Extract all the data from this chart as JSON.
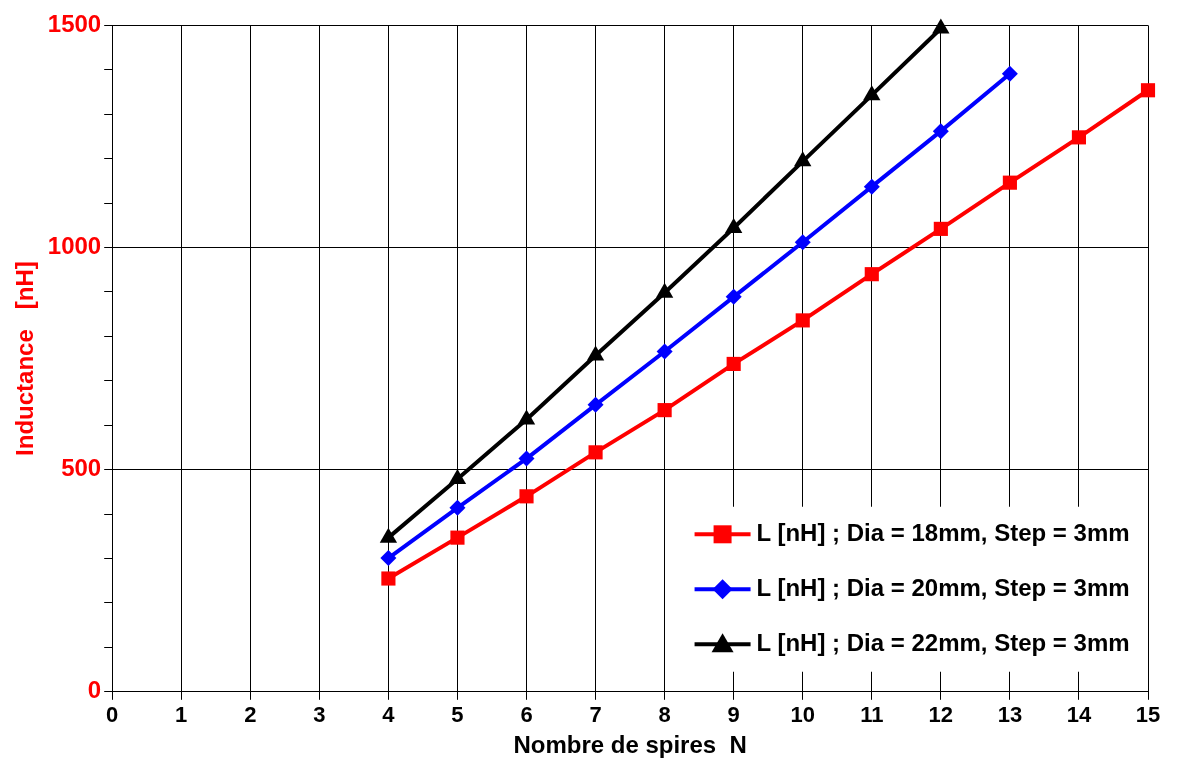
{
  "chart_data": {
    "type": "line",
    "xlabel": "Nombre de spires  N",
    "ylabel": "Inductance   [nH]",
    "x": [
      4,
      5,
      6,
      7,
      8,
      9,
      10,
      11,
      12,
      13,
      14,
      15
    ],
    "series": [
      {
        "name": "L [nH] ; Dia = 18mm, Step = 3mm",
        "color": "#ff0000",
        "marker": "square",
        "values": [
          255,
          347,
          440,
          539,
          634,
          738,
          836,
          940,
          1042,
          1146,
          1248,
          1354
        ]
      },
      {
        "name": "L [nH] ; Dia = 20mm, Step = 3mm",
        "color": "#0000ff",
        "marker": "diamond",
        "values": [
          301,
          414,
          525,
          646,
          766,
          889,
          1012,
          1137,
          1262,
          1391,
          null,
          null
        ]
      },
      {
        "name": "L [nH] ; Dia = 22mm, Step = 3mm",
        "color": "#000000",
        "marker": "triangle",
        "values": [
          347,
          479,
          613,
          757,
          898,
          1044,
          1194,
          1343,
          1493,
          null,
          null,
          null
        ]
      }
    ],
    "xlim": [
      0,
      15
    ],
    "xticks": [
      0,
      1,
      2,
      3,
      4,
      5,
      6,
      7,
      8,
      9,
      10,
      11,
      12,
      13,
      14,
      15
    ],
    "ylim": [
      0,
      1500
    ],
    "yticks": [
      0,
      {
        "value": 100,
        "label": null
      },
      {
        "value": 200,
        "label": null
      },
      {
        "value": 300,
        "label": null
      },
      {
        "value": 400,
        "label": null
      },
      500,
      {
        "value": 600,
        "label": null
      },
      {
        "value": 700,
        "label": null
      },
      {
        "value": 800,
        "label": null
      },
      {
        "value": 900,
        "label": null
      },
      1000,
      {
        "value": 1100,
        "label": null
      },
      {
        "value": 1200,
        "label": null
      },
      {
        "value": 1300,
        "label": null
      },
      {
        "value": 1400,
        "label": null
      },
      1500
    ],
    "grid": true,
    "legend": "bottom right",
    "line_style": "solid"
  }
}
